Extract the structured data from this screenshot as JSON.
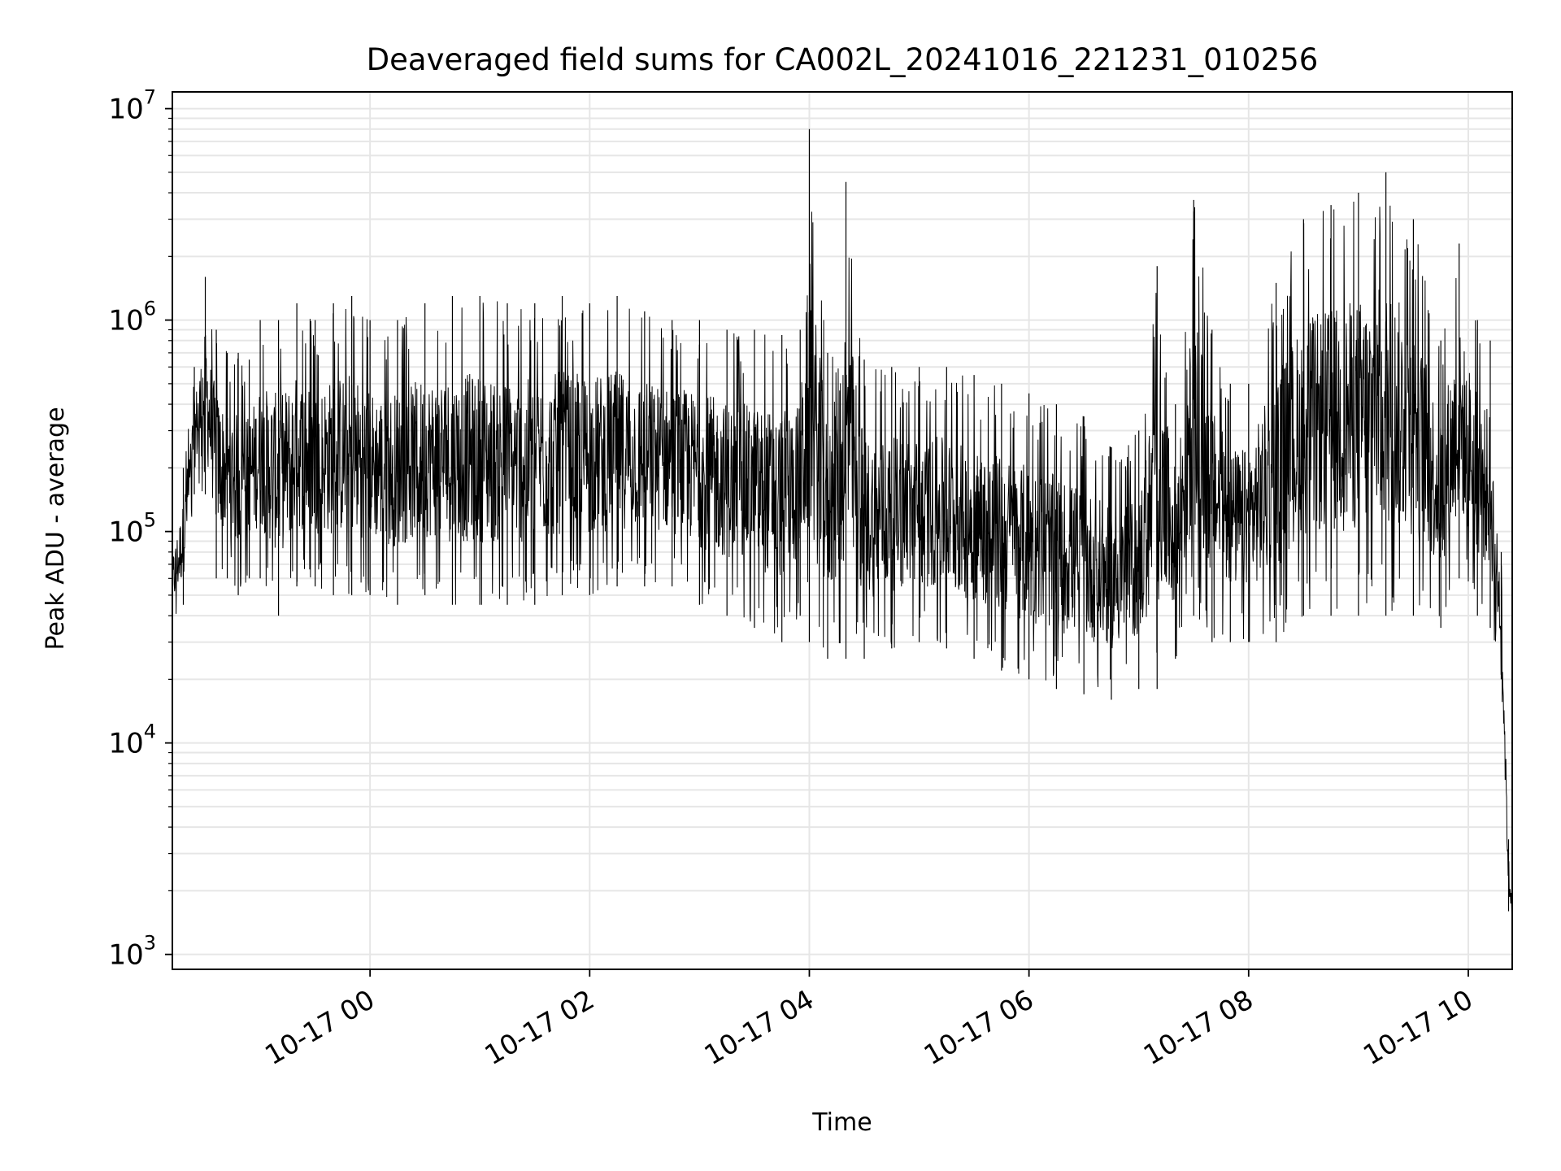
{
  "chart_data": {
    "type": "line",
    "title": "Deaveraged field sums for CA002L_20241016_221231_010256",
    "xlabel": "Time",
    "ylabel": "Peak ADU - average",
    "xlim": [
      "2024-10-16 22:12",
      "2024-10-17 10:24"
    ],
    "ylim": [
      850,
      12000000
    ],
    "yscale": "log",
    "grid": true,
    "legend": "none",
    "line_color": "#000000",
    "grid_color": "#e6e6e6",
    "xticks": [
      "10-17 00",
      "10-17 02",
      "10-17 04",
      "10-17 06",
      "10-17 08",
      "10-17 10"
    ],
    "yticks": [
      {
        "base": "10",
        "exp": "3"
      },
      {
        "base": "10",
        "exp": "4"
      },
      {
        "base": "10",
        "exp": "5"
      },
      {
        "base": "10",
        "exp": "6"
      },
      {
        "base": "10",
        "exp": "7"
      }
    ],
    "x_is_time": true,
    "series": [
      {
        "x": [
          "2024-10-16 22:12",
          "2024-10-16 22:18",
          "2024-10-16 22:24",
          "2024-10-16 22:30",
          "2024-10-16 22:36",
          "2024-10-16 22:42",
          "2024-10-16 22:48",
          "2024-10-16 22:54",
          "2024-10-16 23:00",
          "2024-10-16 23:10",
          "2024-10-16 23:20",
          "2024-10-16 23:30",
          "2024-10-16 23:40",
          "2024-10-16 23:50",
          "2024-10-17 00:00",
          "2024-10-17 00:15",
          "2024-10-17 00:30",
          "2024-10-17 00:45",
          "2024-10-17 01:00",
          "2024-10-17 01:15",
          "2024-10-17 01:30",
          "2024-10-17 01:45",
          "2024-10-17 02:00",
          "2024-10-17 02:15",
          "2024-10-17 02:30",
          "2024-10-17 02:45",
          "2024-10-17 03:00",
          "2024-10-17 03:15",
          "2024-10-17 03:30",
          "2024-10-17 03:45",
          "2024-10-17 03:55",
          "2024-10-17 04:00",
          "2024-10-17 04:10",
          "2024-10-17 04:20",
          "2024-10-17 04:30",
          "2024-10-17 04:45",
          "2024-10-17 05:00",
          "2024-10-17 05:15",
          "2024-10-17 05:30",
          "2024-10-17 05:45",
          "2024-10-17 06:00",
          "2024-10-17 06:15",
          "2024-10-17 06:30",
          "2024-10-17 06:45",
          "2024-10-17 07:00",
          "2024-10-17 07:10",
          "2024-10-17 07:20",
          "2024-10-17 07:30",
          "2024-10-17 07:40",
          "2024-10-17 07:50",
          "2024-10-17 08:00",
          "2024-10-17 08:15",
          "2024-10-17 08:30",
          "2024-10-17 08:45",
          "2024-10-17 09:00",
          "2024-10-17 09:15",
          "2024-10-17 09:30",
          "2024-10-17 09:45",
          "2024-10-17 09:55",
          "2024-10-17 10:05",
          "2024-10-17 10:12",
          "2024-10-17 10:18",
          "2024-10-17 10:22",
          "2024-10-17 10:24"
        ],
        "y_high": [
          100000,
          200000,
          600000,
          1600000,
          900000,
          700000,
          700000,
          650000,
          1000000,
          1000000,
          1200000,
          1000000,
          1200000,
          1300000,
          1000000,
          1000000,
          1200000,
          1300000,
          1300000,
          1200000,
          1200000,
          1300000,
          1200000,
          1300000,
          1100000,
          1000000,
          1000000,
          900000,
          900000,
          850000,
          900000,
          8000000,
          700000,
          4500000,
          650000,
          600000,
          600000,
          600000,
          550000,
          500000,
          450000,
          400000,
          350000,
          250000,
          300000,
          1800000,
          400000,
          3700000,
          900000,
          500000,
          500000,
          1500000,
          3000000,
          3500000,
          4000000,
          5000000,
          3000000,
          800000,
          2300000,
          1000000,
          800000,
          80000,
          3500,
          2400
        ],
        "y_low": [
          35000,
          45000,
          150000,
          150000,
          60000,
          60000,
          50000,
          60000,
          60000,
          40000,
          55000,
          55000,
          50000,
          50000,
          50000,
          45000,
          50000,
          45000,
          45000,
          45000,
          45000,
          50000,
          50000,
          55000,
          55000,
          55000,
          45000,
          40000,
          35000,
          30000,
          40000,
          30000,
          25000,
          25000,
          25000,
          28000,
          30000,
          28000,
          25000,
          22000,
          20000,
          18000,
          17000,
          16000,
          18000,
          18000,
          25000,
          40000,
          30000,
          30000,
          30000,
          30000,
          40000,
          40000,
          40000,
          40000,
          40000,
          35000,
          60000,
          40000,
          35000,
          20000,
          1600,
          1300
        ]
      }
    ]
  }
}
